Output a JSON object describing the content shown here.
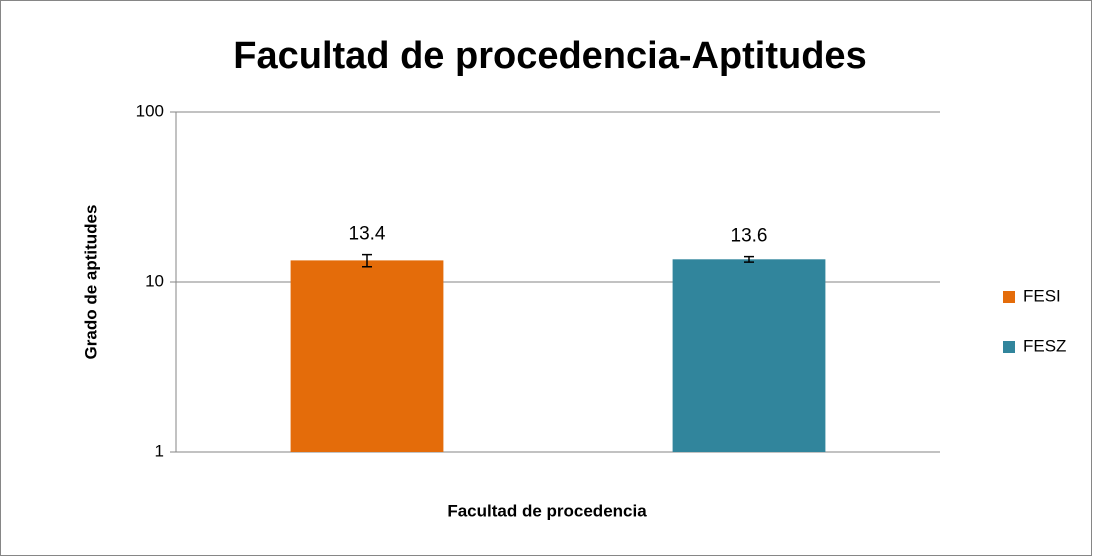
{
  "chart_data": {
    "type": "bar",
    "title": "Facultad de procedencia-Aptitudes",
    "x_label": "Facultad de procedencia",
    "y_label": "Grado de aptitudes",
    "categories": [
      null
    ],
    "series": [
      {
        "name": "FESI",
        "color": "#e46c0a",
        "values": [
          13.4
        ],
        "errors": [
          1.1
        ]
      },
      {
        "name": "FESZ",
        "color": "#31859c",
        "values": [
          13.6
        ],
        "errors": [
          0.5
        ]
      }
    ],
    "ylim": [
      1,
      100
    ],
    "yticks": [
      1,
      10,
      100
    ],
    "log_y": true,
    "grid": true,
    "legend": "right"
  }
}
